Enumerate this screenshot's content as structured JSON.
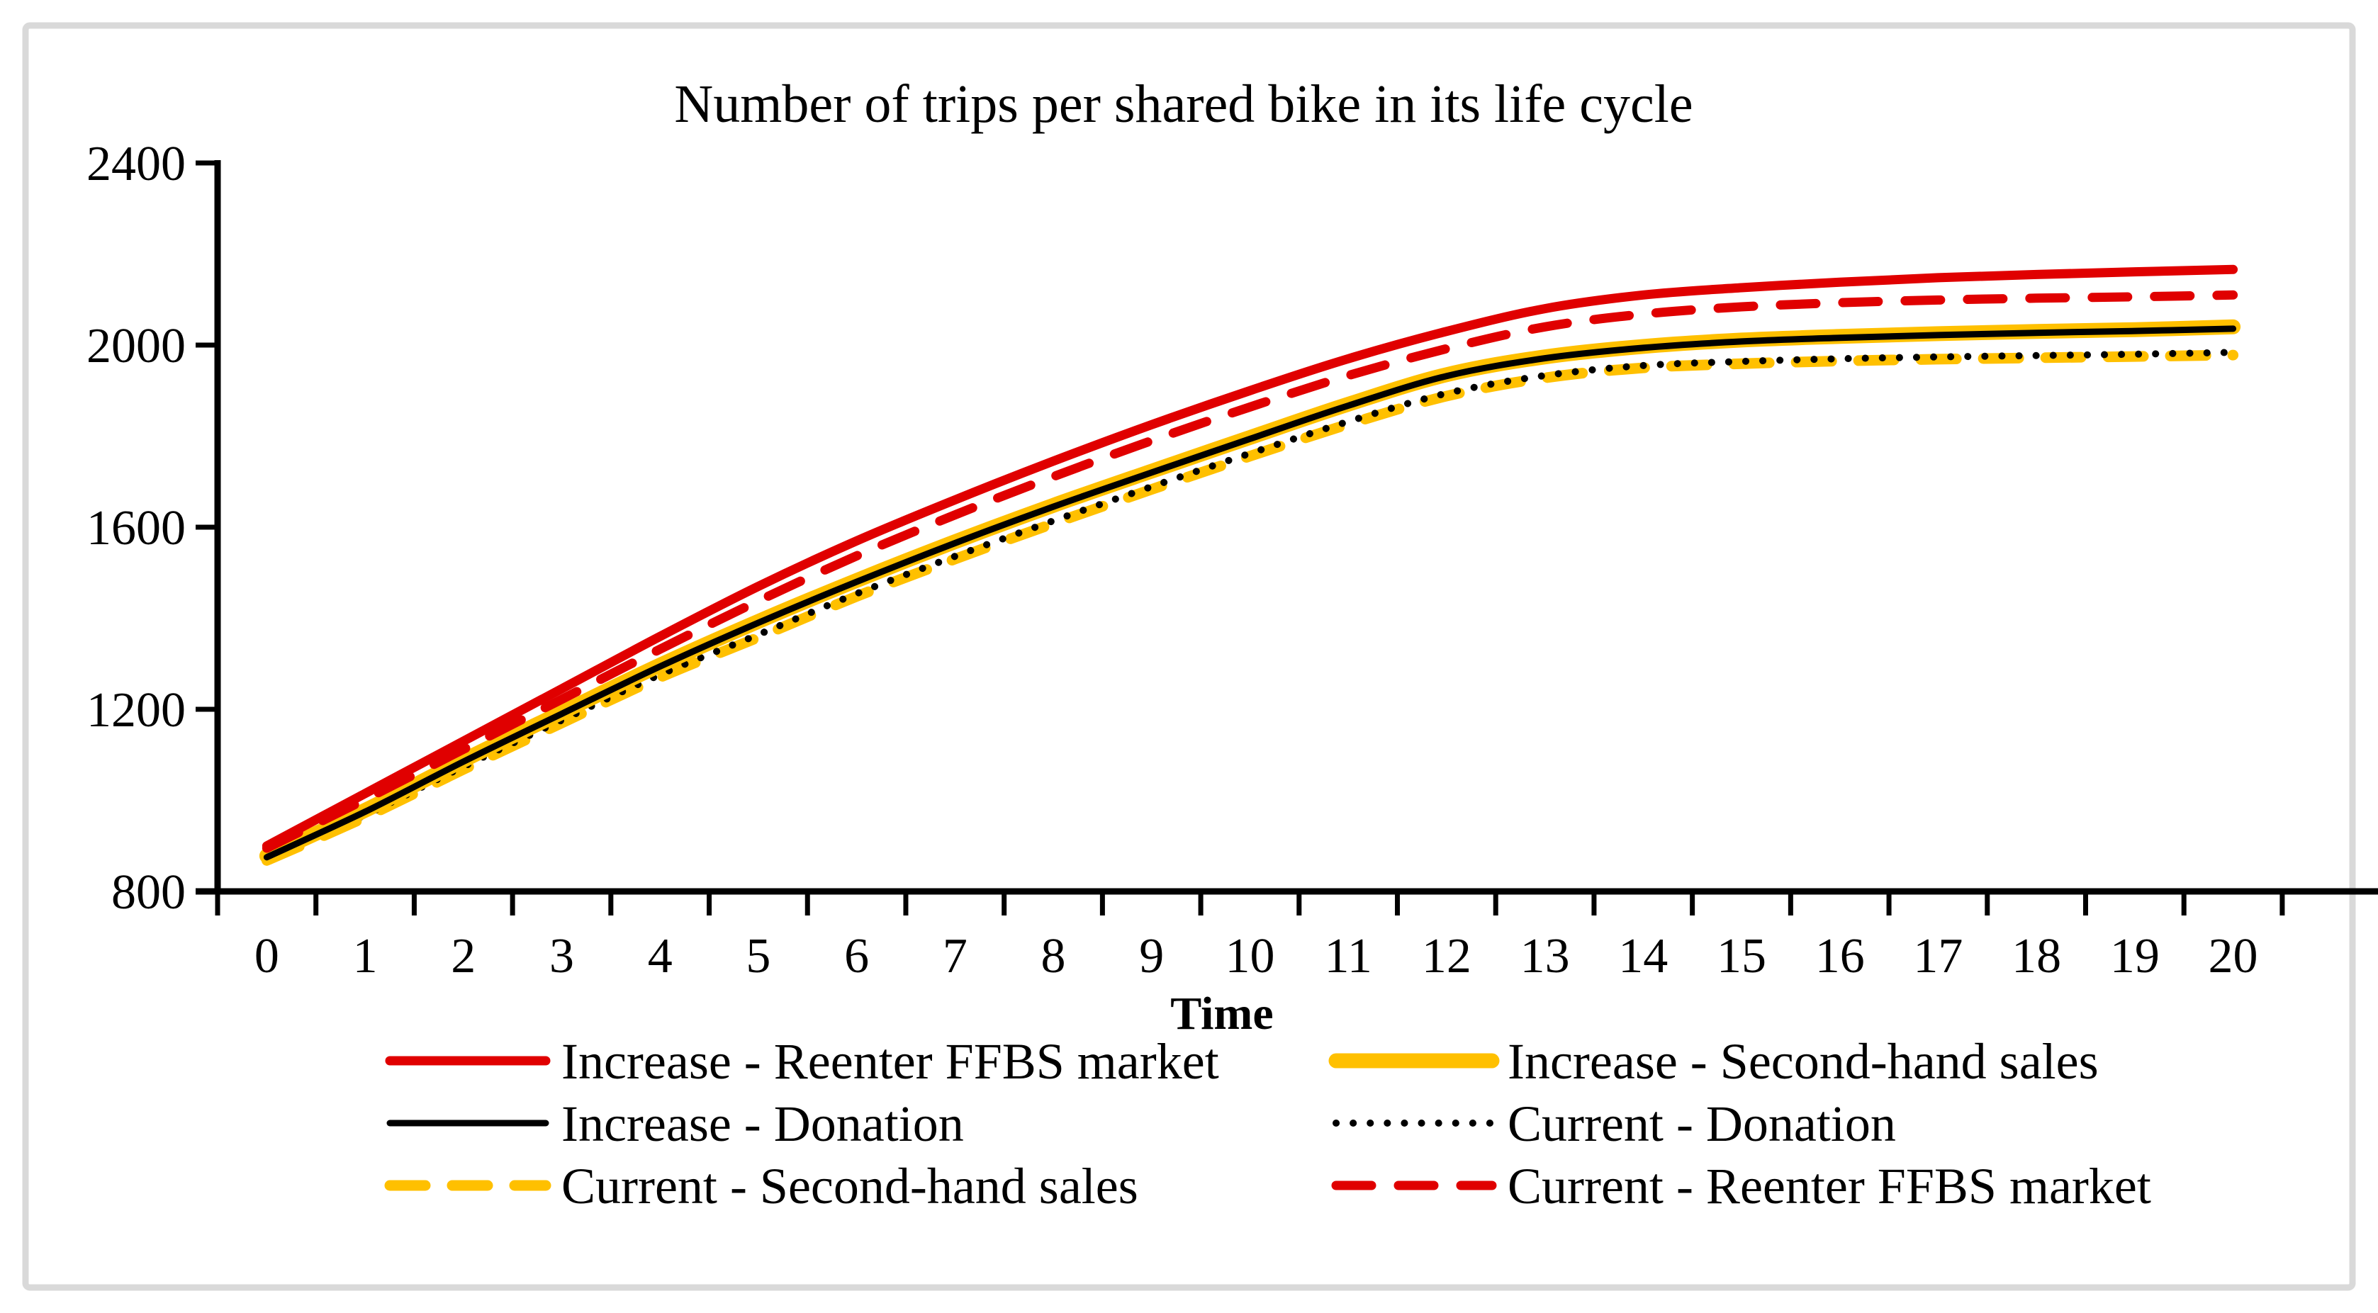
{
  "chart_data": {
    "type": "line",
    "title": "Number of trips per shared bike in its life cycle",
    "xlabel": "Time",
    "ylabel": "",
    "x": [
      0,
      1,
      2,
      3,
      4,
      5,
      6,
      7,
      8,
      9,
      10,
      11,
      12,
      13,
      14,
      15,
      16,
      17,
      18,
      19,
      20
    ],
    "ylim": [
      800,
      2400
    ],
    "yticks": [
      800,
      1200,
      1600,
      2000,
      2400
    ],
    "grid": false,
    "legend_position": "bottom",
    "series": [
      {
        "key": "current_secondhand",
        "name": "Current - Second-hand sales",
        "color": "#FFC000",
        "style": "dashed",
        "width": 15,
        "values": [
          868,
          963,
          1068,
          1170,
          1270,
          1358,
          1448,
          1530,
          1608,
          1683,
          1756,
          1826,
          1888,
          1928,
          1950,
          1959,
          1965,
          1969,
          1972,
          1975,
          1978
        ]
      },
      {
        "key": "current_donation",
        "name": "Current - Donation",
        "color": "#000000",
        "style": "dotted",
        "width": 10,
        "values": [
          872,
          968,
          1074,
          1176,
          1276,
          1364,
          1454,
          1536,
          1614,
          1689,
          1762,
          1832,
          1894,
          1933,
          1955,
          1964,
          1970,
          1974,
          1977,
          1980,
          1984
        ]
      },
      {
        "key": "increase_secondhand",
        "name": "Increase - Second-hand sales",
        "color": "#FFC000",
        "style": "solid",
        "width": 21,
        "values": [
          878,
          978,
          1088,
          1193,
          1297,
          1393,
          1483,
          1568,
          1648,
          1723,
          1797,
          1870,
          1935,
          1974,
          1997,
          2011,
          2019,
          2025,
          2030,
          2034,
          2040
        ]
      },
      {
        "key": "increase_donation",
        "name": "Increase - Donation",
        "color": "#000000",
        "style": "solid",
        "width": 9,
        "values": [
          875,
          975,
          1085,
          1190,
          1294,
          1390,
          1480,
          1565,
          1645,
          1720,
          1794,
          1867,
          1932,
          1971,
          1994,
          2008,
          2016,
          2022,
          2027,
          2031,
          2036
        ]
      },
      {
        "key": "current_reenter",
        "name": "Current - Reenter FFBS market",
        "color": "#E00000",
        "style": "dashed",
        "width": 13,
        "values": [
          895,
          1002,
          1112,
          1222,
          1332,
          1438,
          1537,
          1627,
          1711,
          1790,
          1864,
          1933,
          1992,
          2040,
          2068,
          2084,
          2093,
          2099,
          2103,
          2106,
          2110
        ]
      },
      {
        "key": "increase_reenter",
        "name": "Increase - Reenter FFBS market",
        "color": "#E00000",
        "style": "solid",
        "width": 13,
        "values": [
          900,
          1015,
          1130,
          1245,
          1360,
          1470,
          1570,
          1660,
          1745,
          1825,
          1900,
          1970,
          2030,
          2080,
          2110,
          2126,
          2138,
          2148,
          2155,
          2161,
          2166
        ]
      }
    ],
    "legend_entries": [
      "increase_reenter",
      "increase_secondhand",
      "increase_donation",
      "current_donation",
      "current_secondhand",
      "current_reenter"
    ]
  },
  "frame_color": "#D9D9D9",
  "axis_color": "#000000"
}
